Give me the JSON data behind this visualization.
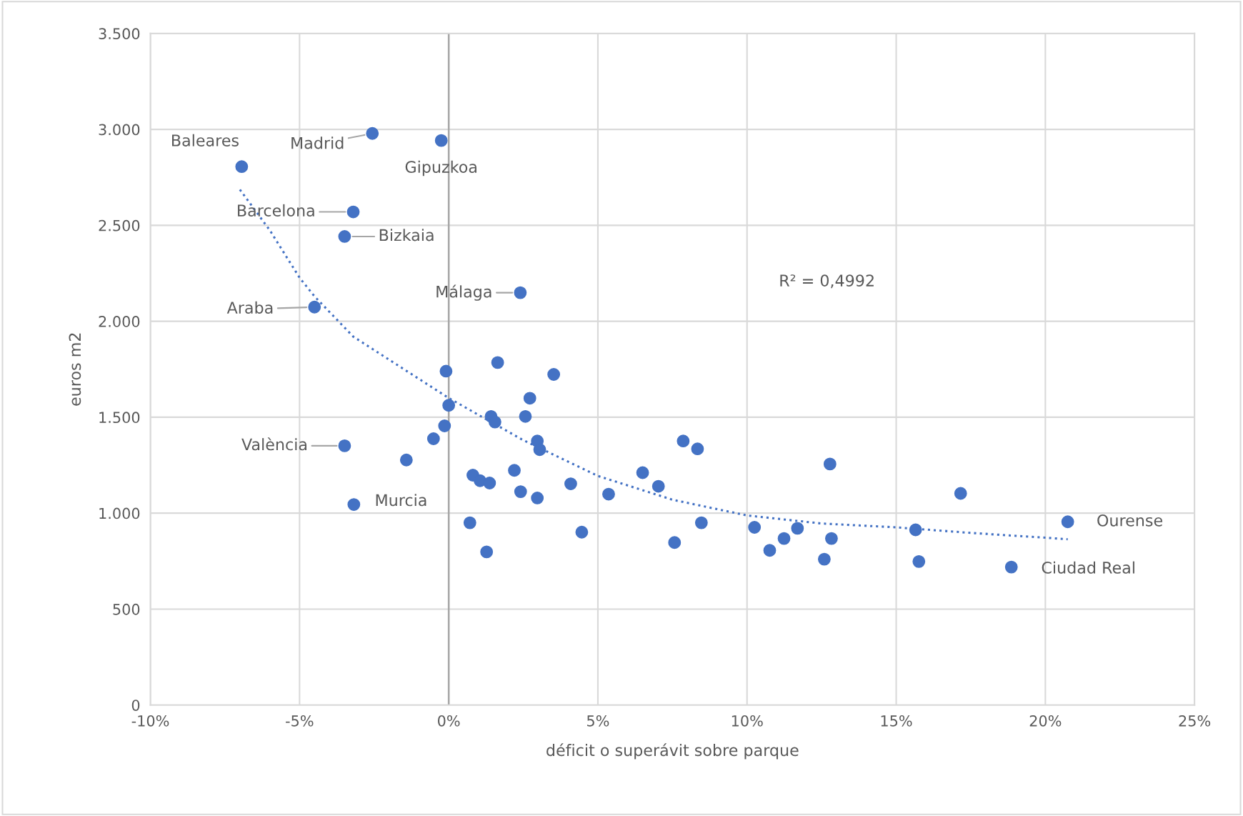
{
  "chart_data": {
    "type": "scatter",
    "xlabel": "déficit o superávit sobre parque",
    "ylabel": "euros m2",
    "xlim": [
      -10,
      25
    ],
    "xticks": [
      {
        "value": -10,
        "label": "-10%"
      },
      {
        "value": -5,
        "label": "-5%"
      },
      {
        "value": 0,
        "label": "0%"
      },
      {
        "value": 5,
        "label": "5%"
      },
      {
        "value": 10,
        "label": "10%"
      },
      {
        "value": 15,
        "label": "15%"
      },
      {
        "value": 20,
        "label": "20%"
      },
      {
        "value": 25,
        "label": "25%"
      }
    ],
    "ylim": [
      0,
      3500
    ],
    "yticks": [
      0,
      500,
      {
        "value": 1000,
        "label": "1.000"
      },
      {
        "value": 1500,
        "label": "1.500"
      },
      {
        "value": 2000,
        "label": "2.000"
      },
      {
        "value": 2500,
        "label": "2.500"
      },
      {
        "value": 3000,
        "label": "3.000"
      },
      {
        "value": 3500,
        "label": "3.500"
      }
    ],
    "grid": true,
    "marker": "circle",
    "ref_lines": [
      {
        "axis": "x",
        "value": 0,
        "color": "#a6a6a6"
      }
    ],
    "series": [
      {
        "color": "#4472c4",
        "x": [
          -6.94,
          -2.56,
          -0.25,
          -3.2,
          -3.49,
          2.4,
          -4.5,
          -3.49,
          -3.18,
          20.75,
          18.86,
          -0.09,
          1.64,
          3.52,
          2.72,
          0,
          1.42,
          2.57,
          1.55,
          -0.14,
          -0.51,
          2.97,
          3.05,
          -1.42,
          2.2,
          0.81,
          1.05,
          1.37,
          4.09,
          2.41,
          2.97,
          5.36,
          6.5,
          7.03,
          7.86,
          8.34,
          12.78,
          17.16,
          0.71,
          1.27,
          4.46,
          7.57,
          8.47,
          10.25,
          10.76,
          11.24,
          11.69,
          12.59,
          12.83,
          15.65,
          15.76
        ],
        "values": [
          2806,
          2979,
          2942,
          2570,
          2442,
          2149,
          2074,
          1351,
          1045,
          955,
          719,
          1740,
          1785,
          1723,
          1599,
          1562,
          1504,
          1504,
          1475,
          1455,
          1388,
          1376,
          1331,
          1277,
          1223,
          1198,
          1169,
          1157,
          1153,
          1112,
          1079,
          1099,
          1211,
          1140,
          1376,
          1335,
          1256,
          1103,
          950,
          798,
          901,
          847,
          950,
          926,
          806,
          868,
          921,
          760,
          868,
          913,
          748
        ]
      },
      {
        "type": "line",
        "color": "#4472c4",
        "line_style": "dotted",
        "marker": "none",
        "x": [
          -7,
          -6,
          -5,
          -4.5,
          -3.2,
          0,
          2.5,
          5,
          7.5,
          10,
          12.5,
          15,
          17.5,
          20,
          20.75
        ],
        "values": [
          2686,
          2475,
          2227,
          2130,
          1920,
          1600,
          1380,
          1194,
          1070,
          988,
          946,
          926,
          897,
          872,
          864
        ]
      }
    ],
    "annotations": [
      {
        "text": "Baleares",
        "x": -6.94,
        "y": 2806
      },
      {
        "text": "Madrid",
        "x": -2.56,
        "y": 2979
      },
      {
        "text": "Gipuzkoa",
        "x": -0.25,
        "y": 2942
      },
      {
        "text": "Barcelona",
        "x": -3.2,
        "y": 2570
      },
      {
        "text": "Bizkaia",
        "x": -3.49,
        "y": 2442
      },
      {
        "text": "Málaga",
        "x": 2.4,
        "y": 2149
      },
      {
        "text": "Araba",
        "x": -4.5,
        "y": 2074
      },
      {
        "text": "València",
        "x": -3.49,
        "y": 1351
      },
      {
        "text": "Murcia",
        "x": -3.18,
        "y": 1045
      },
      {
        "text": "Ourense",
        "x": 20.75,
        "y": 955
      },
      {
        "text": "Ciudad Real",
        "x": 18.86,
        "y": 719
      },
      "R² = 0,4992"
    ]
  }
}
